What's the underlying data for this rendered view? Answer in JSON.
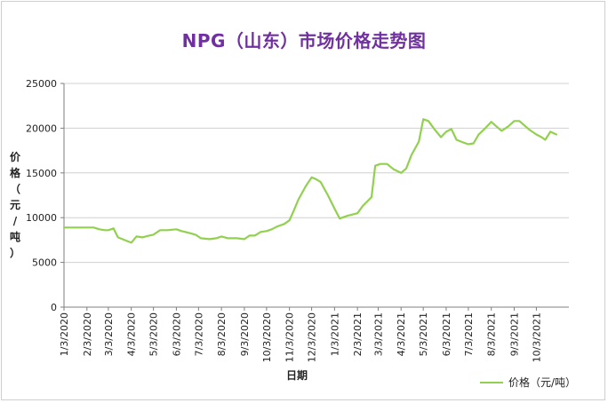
{
  "chart_data": {
    "type": "line",
    "title": "NPG（山东）市场价格走势图",
    "xlabel": "日期",
    "ylabel": "价格（元/吨）",
    "ylim": [
      0,
      25000
    ],
    "yticks": [
      0,
      5000,
      10000,
      15000,
      20000,
      25000
    ],
    "ytick_labels": [
      "0",
      "5000",
      "10000",
      "15000",
      "20000",
      "25000"
    ],
    "xticks": [
      "1/3/2020",
      "2/3/2020",
      "3/3/2020",
      "4/3/2020",
      "5/3/2020",
      "6/3/2020",
      "7/3/2020",
      "8/3/2020",
      "9/3/2020",
      "10/3/2020",
      "11/3/2020",
      "12/3/2020",
      "1/3/2021",
      "2/3/2021",
      "3/3/2021",
      "4/3/2021",
      "5/3/2021",
      "6/3/2021",
      "7/3/2021",
      "8/3/2021",
      "9/3/2021",
      "10/3/2021"
    ],
    "x_range": [
      "1/3/2020",
      "11/16/2021"
    ],
    "grid": "horizontal",
    "legend_position": "bottom-right",
    "line_color": "#92d050",
    "series": [
      {
        "name": "价格（元/吨）",
        "points": [
          [
            "1/3/2020",
            8900
          ],
          [
            "1/13/2020",
            8900
          ],
          [
            "1/23/2020",
            8900
          ],
          [
            "2/3/2020",
            8900
          ],
          [
            "2/12/2020",
            8900
          ],
          [
            "2/20/2020",
            8700
          ],
          [
            "2/27/2020",
            8600
          ],
          [
            "3/3/2020",
            8600
          ],
          [
            "3/10/2020",
            8800
          ],
          [
            "3/16/2020",
            7800
          ],
          [
            "3/25/2020",
            7500
          ],
          [
            "4/3/2020",
            7200
          ],
          [
            "4/10/2020",
            7900
          ],
          [
            "4/18/2020",
            7800
          ],
          [
            "4/27/2020",
            8000
          ],
          [
            "5/3/2020",
            8100
          ],
          [
            "5/12/2020",
            8600
          ],
          [
            "5/22/2020",
            8600
          ],
          [
            "6/3/2020",
            8700
          ],
          [
            "6/10/2020",
            8500
          ],
          [
            "6/20/2020",
            8300
          ],
          [
            "6/29/2020",
            8100
          ],
          [
            "7/6/2020",
            7700
          ],
          [
            "7/18/2020",
            7600
          ],
          [
            "7/27/2020",
            7700
          ],
          [
            "8/3/2020",
            7900
          ],
          [
            "8/12/2020",
            7700
          ],
          [
            "8/24/2020",
            7700
          ],
          [
            "9/3/2020",
            7600
          ],
          [
            "9/10/2020",
            8000
          ],
          [
            "9/17/2020",
            8000
          ],
          [
            "9/25/2020",
            8400
          ],
          [
            "10/3/2020",
            8500
          ],
          [
            "10/10/2020",
            8700
          ],
          [
            "10/17/2020",
            9000
          ],
          [
            "10/27/2020",
            9300
          ],
          [
            "11/3/2020",
            9700
          ],
          [
            "11/9/2020",
            10800
          ],
          [
            "11/15/2020",
            12000
          ],
          [
            "11/25/2020",
            13500
          ],
          [
            "12/3/2020",
            14500
          ],
          [
            "12/9/2020",
            14300
          ],
          [
            "12/15/2020",
            14000
          ],
          [
            "12/25/2020",
            12500
          ],
          [
            "1/3/2021",
            11000
          ],
          [
            "1/10/2021",
            9900
          ],
          [
            "1/20/2021",
            10200
          ],
          [
            "2/3/2021",
            10500
          ],
          [
            "2/10/2021",
            11300
          ],
          [
            "2/22/2021",
            12300
          ],
          [
            "2/27/2021",
            15800
          ],
          [
            "3/6/2021",
            16000
          ],
          [
            "3/15/2021",
            16000
          ],
          [
            "3/24/2021",
            15400
          ],
          [
            "4/3/2021",
            15000
          ],
          [
            "4/10/2021",
            15500
          ],
          [
            "4/17/2021",
            17000
          ],
          [
            "4/27/2021",
            18500
          ],
          [
            "5/3/2021",
            21000
          ],
          [
            "5/10/2021",
            20800
          ],
          [
            "5/18/2021",
            19900
          ],
          [
            "5/27/2021",
            19000
          ],
          [
            "6/3/2021",
            19600
          ],
          [
            "6/10/2021",
            19900
          ],
          [
            "6/17/2021",
            18700
          ],
          [
            "6/26/2021",
            18400
          ],
          [
            "7/3/2021",
            18200
          ],
          [
            "7/10/2021",
            18300
          ],
          [
            "7/17/2021",
            19300
          ],
          [
            "7/26/2021",
            20000
          ],
          [
            "8/3/2021",
            20700
          ],
          [
            "8/10/2021",
            20200
          ],
          [
            "8/17/2021",
            19700
          ],
          [
            "8/26/2021",
            20200
          ],
          [
            "9/3/2021",
            20800
          ],
          [
            "9/10/2021",
            20800
          ],
          [
            "9/17/2021",
            20300
          ],
          [
            "9/24/2021",
            19800
          ],
          [
            "10/3/2021",
            19300
          ],
          [
            "10/10/2021",
            19000
          ],
          [
            "10/15/2021",
            18700
          ],
          [
            "10/22/2021",
            19600
          ],
          [
            "10/30/2021",
            19300
          ]
        ]
      }
    ]
  }
}
